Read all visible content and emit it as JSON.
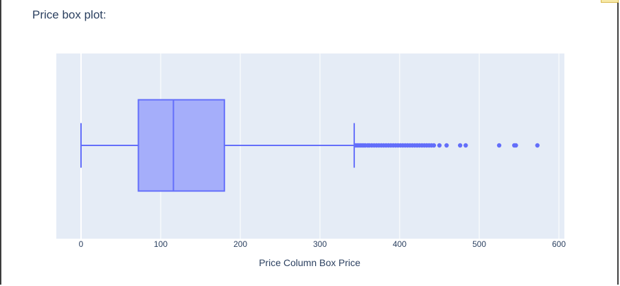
{
  "heading": "Price box plot:",
  "colors": {
    "plot_bg": "#e5ecf6",
    "grid": "#ffffff",
    "box_stroke": "#636efa",
    "box_fill": "#a5aefa",
    "text": "#2a3f5f"
  },
  "chart_data": {
    "type": "box",
    "orientation": "horizontal",
    "title": "",
    "xlabel": "Price Column Box Price",
    "ylabel": "",
    "xlim": [
      -30,
      605
    ],
    "xticks": [
      0,
      100,
      200,
      300,
      400,
      500,
      600
    ],
    "grid": true,
    "box": {
      "lower_fence": 0,
      "q1": 72,
      "median": 116,
      "q3": 180,
      "upper_fence": 343
    },
    "outliers": [
      345,
      347,
      349,
      351,
      353,
      355,
      357,
      360,
      362,
      365,
      368,
      371,
      374,
      377,
      380,
      383,
      386,
      389,
      392,
      395,
      398,
      401,
      404,
      407,
      410,
      413,
      416,
      419,
      422,
      425,
      428,
      431,
      434,
      437,
      440,
      443,
      450,
      459,
      476,
      483,
      525,
      544,
      546,
      573
    ]
  }
}
